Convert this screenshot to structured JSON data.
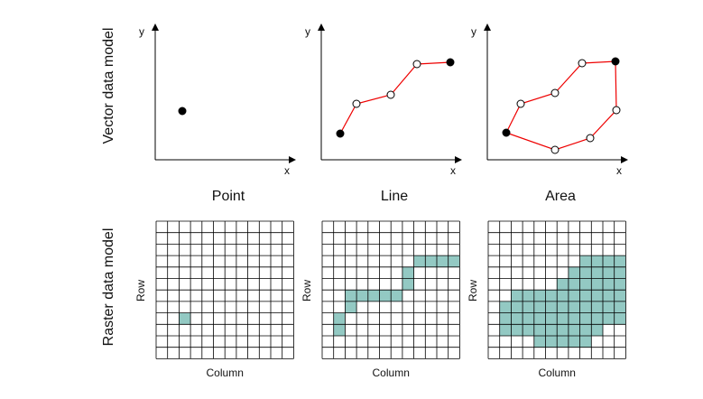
{
  "row_labels": [
    "Vector data model",
    "Raster data model"
  ],
  "panels": [
    {
      "title": "Point",
      "x_axis": "x",
      "y_axis": "y",
      "raster_x_axis": "Column",
      "raster_y_axis": "Row"
    },
    {
      "title": "Line",
      "x_axis": "x",
      "y_axis": "y",
      "raster_x_axis": "Column",
      "raster_y_axis": "Row"
    },
    {
      "title": "Area",
      "x_axis": "x",
      "y_axis": "y",
      "raster_x_axis": "Column",
      "raster_y_axis": "Row"
    }
  ]
}
